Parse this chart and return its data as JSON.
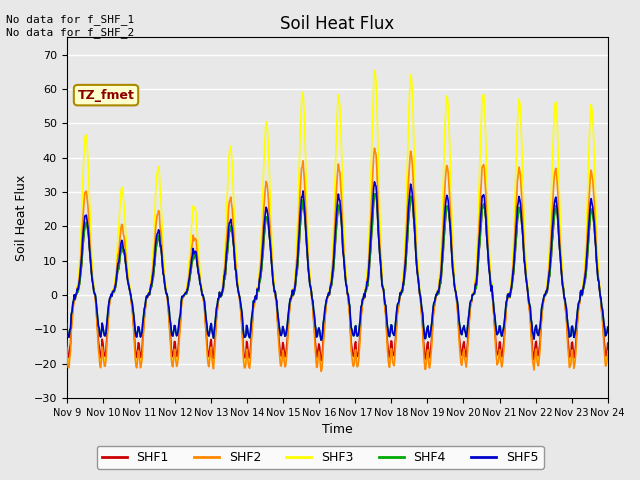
{
  "title": "Soil Heat Flux",
  "ylabel": "Soil Heat Flux",
  "xlabel": "Time",
  "annotation_text": "No data for f_SHF_1\nNo data for f_SHF_2",
  "legend_label": "TZ_fmet",
  "legend_box_color": "#ffffcc",
  "legend_box_edge": "#aa8800",
  "ylim": [
    -30,
    75
  ],
  "yticks": [
    -30,
    -20,
    -10,
    0,
    10,
    20,
    30,
    40,
    50,
    60,
    70
  ],
  "bg_color": "#e8e8e8",
  "plot_bg_color": "#e8e8e8",
  "grid_color": "white",
  "series_colors": {
    "SHF1": "#cc0000",
    "SHF2": "#ff8800",
    "SHF3": "#ffff00",
    "SHF4": "#00aa00",
    "SHF5": "#0000cc"
  },
  "num_days": 15,
  "xtick_labels": [
    "Nov 9",
    "Nov 10",
    "Nov 11",
    "Nov 12",
    "Nov 13",
    "Nov 14",
    "Nov 15",
    "Nov 16",
    "Nov 17",
    "Nov 18",
    "Nov 19",
    "Nov 20",
    "Nov 21",
    "Nov 22",
    "Nov 23",
    "Nov 24"
  ],
  "line_width": 1.2,
  "peak_scales": [
    47,
    31,
    37,
    26,
    43,
    50,
    58,
    58,
    65,
    64,
    58,
    59,
    57,
    56,
    55
  ]
}
